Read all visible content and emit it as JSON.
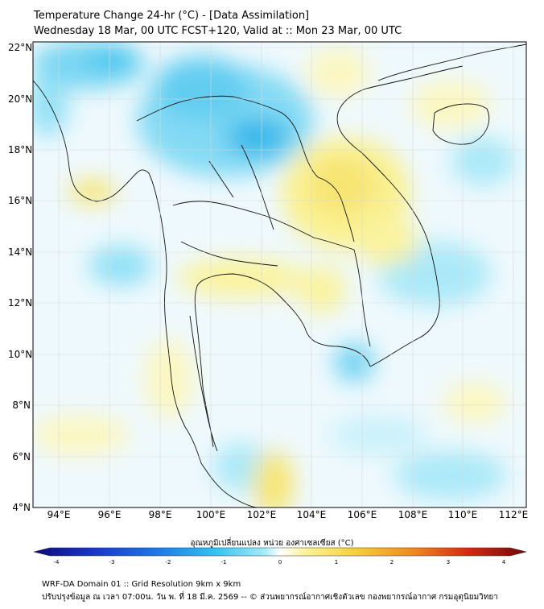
{
  "header": {
    "title_line1": "Temperature Change 24-hr (°C) - [Data Assimilation]",
    "title_line2": "Wednesday 18 Mar, 00 UTC FCST+120, Valid at :: Mon 23 Mar, 00 UTC"
  },
  "map": {
    "lat_labels": [
      "22°N",
      "20°N",
      "18°N",
      "16°N",
      "14°N",
      "12°N",
      "10°N",
      "8°N",
      "6°N",
      "4°N"
    ],
    "lon_labels": [
      "94°E",
      "96°E",
      "98°E",
      "100°E",
      "102°E",
      "104°E",
      "106°E",
      "108°E",
      "110°E",
      "112°E"
    ],
    "lat_range": [
      4,
      22
    ],
    "lon_range": [
      93,
      112
    ]
  },
  "colorbar": {
    "title": "อุณหภูมิเปลี่ยนแปลง หน่วย องศาเซลเซียส (°C)",
    "ticks": [
      "-4",
      "-3",
      "-2",
      "-1",
      "0",
      "1",
      "2",
      "3",
      "4"
    ],
    "range": [
      -4,
      4
    ],
    "colors": [
      "#0a0a7a",
      "#1b34c8",
      "#1e78e6",
      "#33c3f0",
      "#a8ecf8",
      "#ffffff",
      "#fbf39a",
      "#f5d23c",
      "#f08a1e",
      "#d62a14",
      "#6e0808"
    ]
  },
  "footer": {
    "line1": "WRF-DA Domain 01 :: Grid Resolution 9km x 9km",
    "line2": "ปรับปรุงข้อมูล ณ เวลา 07:00น. วัน พ. ที่ 18 มี.ค. 2569 -- © ส่วนพยากรณ์อากาศเชิงตัวเลข กองพยากรณ์อากาศ กรมอุตุนิยมวิทยา"
  }
}
